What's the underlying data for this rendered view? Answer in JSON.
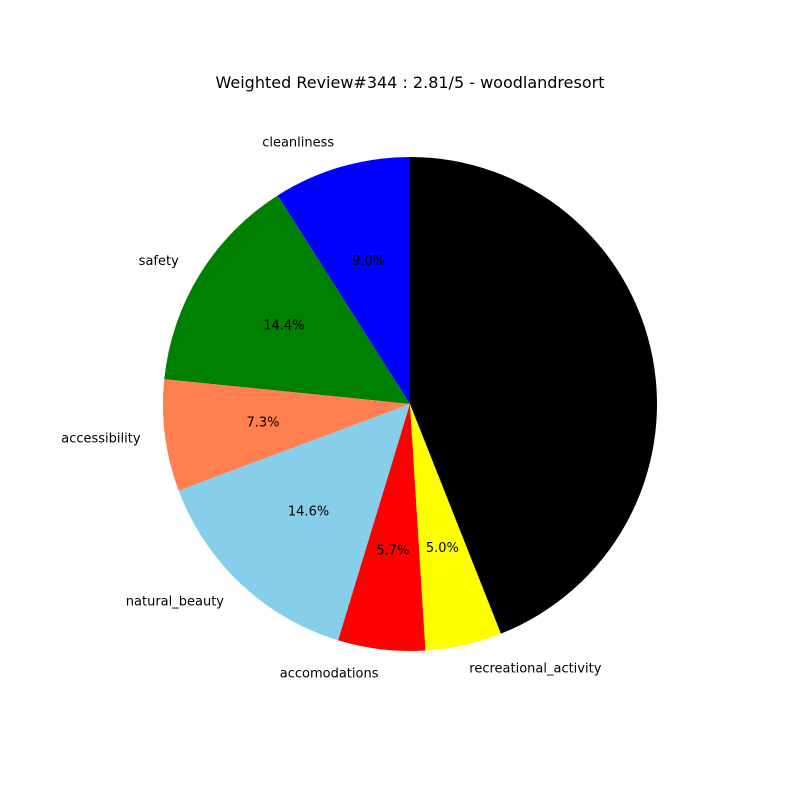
{
  "chart_data": {
    "type": "pie",
    "title": "Weighted Review#344 : 2.81/5 - woodlandresort",
    "start_angle_deg": 90,
    "direction": "counterclockwise",
    "slices": [
      {
        "label": "cleanliness",
        "value": 9.0,
        "pct_text": "9.0%",
        "color": "#0000ff"
      },
      {
        "label": "safety",
        "value": 14.4,
        "pct_text": "14.4%",
        "color": "#008000"
      },
      {
        "label": "accessibility",
        "value": 7.3,
        "pct_text": "7.3%",
        "color": "#ff7f50"
      },
      {
        "label": "natural_beauty",
        "value": 14.6,
        "pct_text": "14.6%",
        "color": "#87ceeb"
      },
      {
        "label": "accomodations",
        "value": 5.7,
        "pct_text": "5.7%",
        "color": "#ff0000"
      },
      {
        "label": "recreational_activity",
        "value": 5.0,
        "pct_text": "5.0%",
        "color": "#ffff00"
      },
      {
        "label": "",
        "value": 44.0,
        "pct_text": "",
        "color": "#000000"
      }
    ]
  }
}
